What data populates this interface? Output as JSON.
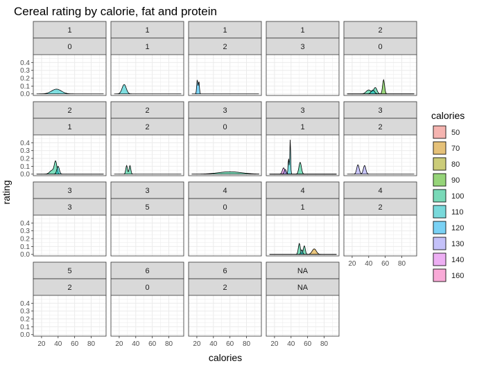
{
  "chart_data": {
    "type": "area",
    "title": "Cereal rating by calorie, fat and protein",
    "xlabel": "calories",
    "ylabel": "rating",
    "xlim": [
      10,
      98
    ],
    "ylim": [
      -0.02,
      0.5
    ],
    "x_ticks": [
      20,
      40,
      60,
      80
    ],
    "y_ticks": [
      0.0,
      0.1,
      0.2,
      0.3,
      0.4
    ],
    "y_tick_labels": [
      "0.0",
      "0.1",
      "0.2",
      "0.3",
      "0.4"
    ],
    "grid": true,
    "facet_layout": {
      "columns": 5,
      "rows": 4
    },
    "legend": {
      "title": "calories",
      "position": "right",
      "entries": [
        {
          "label": "50",
          "color": "#F8766D"
        },
        {
          "label": "70",
          "color": "#D89000"
        },
        {
          "label": "80",
          "color": "#A3A500"
        },
        {
          "label": "90",
          "color": "#39B600"
        },
        {
          "label": "100",
          "color": "#00BF7D"
        },
        {
          "label": "110",
          "color": "#00BFC4"
        },
        {
          "label": "120",
          "color": "#00B0F6"
        },
        {
          "label": "130",
          "color": "#9590FF"
        },
        {
          "label": "140",
          "color": "#E76BF3"
        },
        {
          "label": "160",
          "color": "#FF62BC"
        }
      ]
    },
    "facets": [
      {
        "top": "1",
        "bottom": "0",
        "series": [
          {
            "calories": "110",
            "peaks": [
              [
                38,
                0.06,
                6
              ]
            ]
          }
        ]
      },
      {
        "top": "1",
        "bottom": "1",
        "series": [
          {
            "calories": "110",
            "peaks": [
              [
                26,
                0.12,
                2.5
              ]
            ]
          }
        ]
      },
      {
        "top": "1",
        "bottom": "2",
        "series": [
          {
            "calories": "120",
            "peaks": [
              [
                20.5,
                0.18,
                0.7
              ],
              [
                22.5,
                0.16,
                0.6
              ]
            ]
          }
        ]
      },
      {
        "top": "1",
        "bottom": "3",
        "series": []
      },
      {
        "top": "2",
        "bottom": "0",
        "series": [
          {
            "calories": "100",
            "peaks": [
              [
                40,
                0.05,
                3
              ],
              [
                48,
                0.08,
                2
              ]
            ]
          },
          {
            "calories": "90",
            "peaks": [
              [
                58,
                0.18,
                1.2
              ]
            ]
          },
          {
            "calories": "110",
            "peaks": [
              [
                45,
                0.05,
                2
              ]
            ]
          }
        ]
      },
      {
        "top": "2",
        "bottom": "1",
        "series": [
          {
            "calories": "100",
            "peaks": [
              [
                37,
                0.15,
                1.5
              ],
              [
                33,
                0.05,
                3
              ]
            ]
          },
          {
            "calories": "110",
            "peaks": [
              [
                40,
                0.1,
                1.5
              ]
            ]
          }
        ]
      },
      {
        "top": "2",
        "bottom": "2",
        "series": [
          {
            "calories": "100",
            "peaks": [
              [
                29,
                0.11,
                1
              ],
              [
                33,
                0.11,
                1
              ]
            ]
          }
        ]
      },
      {
        "top": "3",
        "bottom": "0",
        "series": [
          {
            "calories": "100",
            "peaks": [
              [
                60,
                0.03,
                14
              ]
            ]
          }
        ]
      },
      {
        "top": "3",
        "bottom": "1",
        "series": [
          {
            "calories": "140",
            "peaks": [
              [
                31,
                0.08,
                1.5
              ]
            ]
          },
          {
            "calories": "110",
            "peaks": [
              [
                39,
                0.45,
                0.5
              ],
              [
                37,
                0.2,
                0.6
              ]
            ]
          },
          {
            "calories": "100",
            "peaks": [
              [
                51,
                0.15,
                1.5
              ]
            ]
          },
          {
            "calories": "130",
            "peaks": [
              [
                33,
                0.06,
                1.2
              ]
            ]
          }
        ]
      },
      {
        "top": "3",
        "bottom": "2",
        "series": [
          {
            "calories": "130",
            "peaks": [
              [
                27,
                0.12,
                1.5
              ],
              [
                35,
                0.11,
                1.5
              ]
            ]
          }
        ]
      },
      {
        "top": "3",
        "bottom": "3",
        "series": []
      },
      {
        "top": "3",
        "bottom": "5",
        "series": []
      },
      {
        "top": "4",
        "bottom": "0",
        "series": []
      },
      {
        "top": "4",
        "bottom": "1",
        "series": [
          {
            "calories": "100",
            "peaks": [
              [
                50,
                0.14,
                1.2
              ],
              [
                56,
                0.11,
                1.2
              ]
            ]
          },
          {
            "calories": "70",
            "peaks": [
              [
                68,
                0.07,
                2.5
              ]
            ]
          },
          {
            "calories": "110",
            "peaks": [
              [
                53,
                0.06,
                1
              ]
            ]
          }
        ]
      },
      {
        "top": "4",
        "bottom": "2",
        "series": []
      },
      {
        "top": "5",
        "bottom": "2",
        "series": []
      },
      {
        "top": "6",
        "bottom": "0",
        "series": []
      },
      {
        "top": "6",
        "bottom": "2",
        "series": []
      },
      {
        "top": "NA",
        "bottom": "NA",
        "series": []
      }
    ]
  }
}
